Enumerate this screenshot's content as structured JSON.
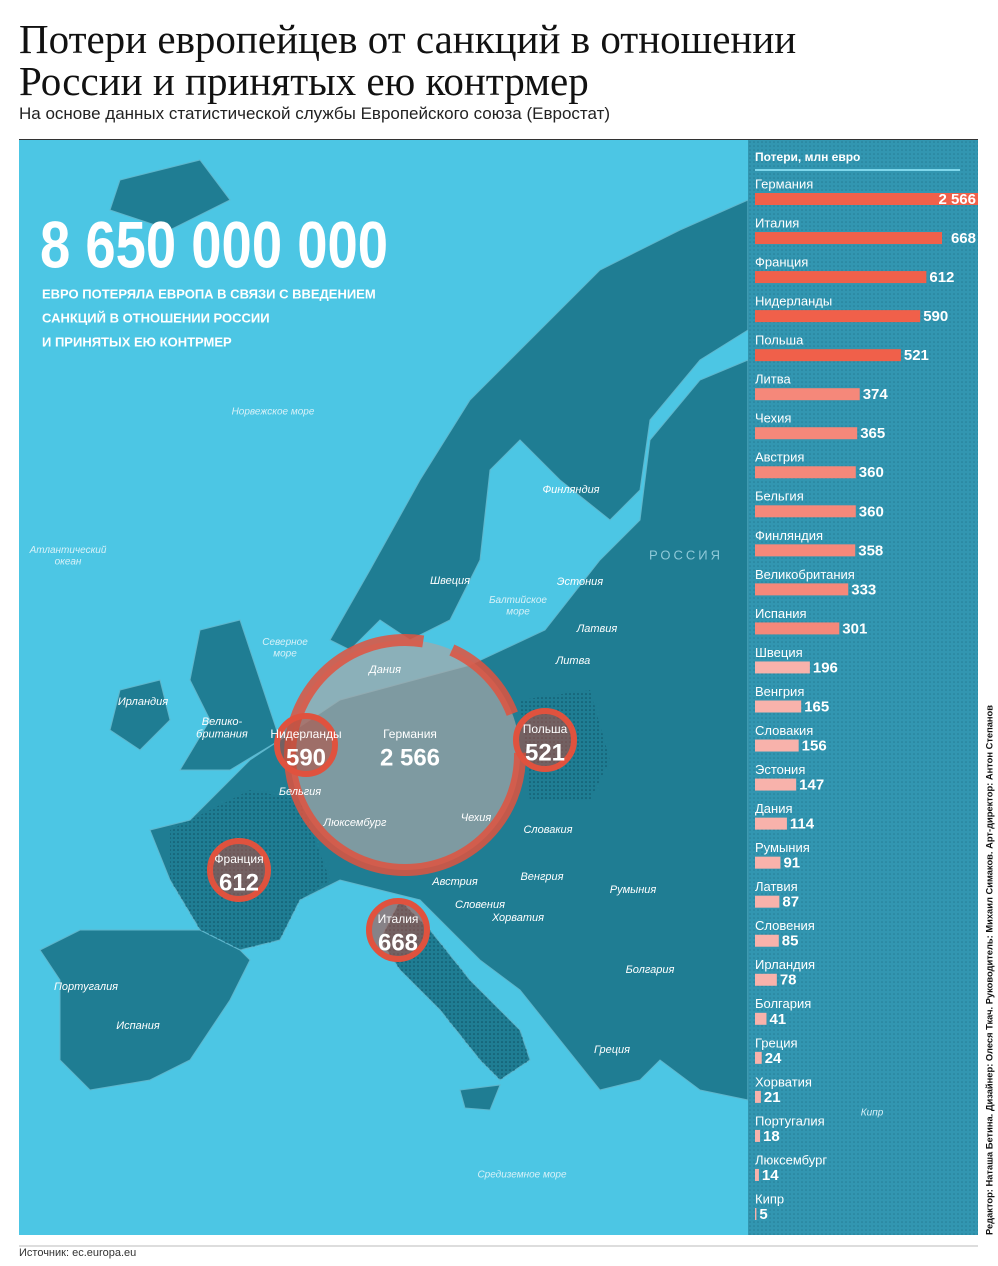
{
  "header": {
    "title": [
      "Потери европейцев от санкций в отношении",
      "России и принятых ею контрмер"
    ],
    "subtitle": "На основе данных статистической службы Европейского союза (Евростат)"
  },
  "headline": {
    "number": "8 650 000 000",
    "caption": [
      "ЕВРО ПОТЕРЯЛА ЕВРОПА В СВЯЗИ С ВВЕДЕНИЕМ",
      "САНКЦИЙ В ОТНОШЕНИИ РОССИИ",
      "И ПРИНЯТЫХ ЕЮ КОНТРМЕР"
    ]
  },
  "map": {
    "labels": [
      "Норвежское море",
      "Атлантический\nокеан",
      "Северное\nморе",
      "Балтийское\nморе",
      "Средиземное море",
      "РОССИЯ",
      "Финляндия",
      "Швеция",
      "Эстония",
      "Латвия",
      "Литва",
      "Дания",
      "Ирландия",
      "Велико-\nбритания",
      "Бельгия",
      "Люксембург",
      "Чехия",
      "Словакия",
      "Австрия",
      "Венгрия",
      "Румыния",
      "Словения",
      "Хорватия",
      "Болгария",
      "Португалия",
      "Испания",
      "Греция",
      "Кипр"
    ],
    "markers": [
      {
        "name": "Нидерланды",
        "value": 590
      },
      {
        "name": "Германия",
        "value": 2566,
        "value_label": "2 566"
      },
      {
        "name": "Польша",
        "value": 521
      },
      {
        "name": "Франция",
        "value": 612
      },
      {
        "name": "Италия",
        "value": 668
      }
    ]
  },
  "chart_data": {
    "type": "bar",
    "orientation": "horizontal",
    "title": "Потери, млн евро",
    "categories": [
      "Германия",
      "Италия",
      "Франция",
      "Нидерланды",
      "Польша",
      "Литва",
      "Чехия",
      "Австрия",
      "Бельгия",
      "Финляндия",
      "Великобритания",
      "Испания",
      "Швеция",
      "Венгрия",
      "Словакия",
      "Эстония",
      "Дания",
      "Румыния",
      "Латвия",
      "Словения",
      "Ирландия",
      "Болгария",
      "Греция",
      "Хорватия",
      "Португалия",
      "Люксембург",
      "Кипр"
    ],
    "values": [
      2566,
      668,
      612,
      590,
      521,
      374,
      365,
      360,
      360,
      358,
      333,
      301,
      196,
      165,
      156,
      147,
      114,
      91,
      87,
      85,
      78,
      41,
      24,
      21,
      18,
      14,
      5
    ],
    "value_labels": [
      "2 566",
      "668",
      "612",
      "590",
      "521",
      "374",
      "365",
      "360",
      "360",
      "358",
      "333",
      "301",
      "196",
      "165",
      "156",
      "147",
      "114",
      "91",
      "87",
      "85",
      "78",
      "41",
      "24",
      "21",
      "18",
      "14",
      "5"
    ],
    "colors": [
      "#f0604a",
      "#f0604a",
      "#f0604a",
      "#f0604a",
      "#f0604a",
      "#f5887a",
      "#f5887a",
      "#f5887a",
      "#f5887a",
      "#f5887a",
      "#f5887a",
      "#f5887a",
      "#f8b2ab",
      "#f8b2ab",
      "#f8b2ab",
      "#f8b2ab",
      "#f8b2ab",
      "#f8b2ab",
      "#f8b2ab",
      "#f8b2ab",
      "#f8b2ab",
      "#f8b2ab",
      "#f8b2ab",
      "#f8b2ab",
      "#f8b2ab",
      "#f8b2ab",
      "#f8b2ab"
    ],
    "xlim": [
      0,
      700
    ]
  },
  "footer": {
    "source": "Источник: ec.europa.eu",
    "credits": "Редактор: Наташа Бетина. Дизайнер: Олеся Ткач. Руководитель: Михаил Симаков. Арт-директор: Антон Степанов"
  }
}
